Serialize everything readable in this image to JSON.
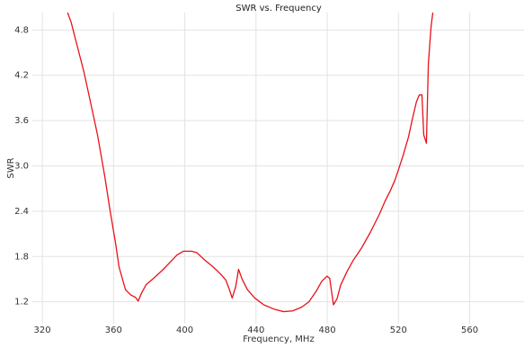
{
  "chart_data": {
    "type": "line",
    "title": "SWR vs. Frequency",
    "x_label": "Frequency, MHz",
    "y_label": "SWR",
    "x": [
      334.2,
      336.2,
      339.8,
      343.4,
      346.9,
      351.0,
      355.0,
      358.1,
      361.1,
      363.1,
      366.7,
      369.7,
      372.3,
      373.8,
      375.8,
      378.4,
      382.4,
      387.5,
      391.6,
      395.6,
      399.2,
      403.8,
      406.8,
      410.9,
      416.0,
      420.0,
      423.0,
      425.1,
      426.6,
      428.6,
      430.2,
      432.2,
      435.2,
      439.3,
      444.4,
      450.5,
      455.5,
      460.6,
      465.7,
      469.7,
      473.8,
      476.9,
      479.9,
      481.4,
      483.5,
      485.5,
      487.5,
      491.1,
      494.6,
      499.2,
      504.2,
      509.3,
      512.4,
      515.4,
      518.0,
      520.0,
      522.5,
      525.6,
      528.1,
      530.1,
      531.7,
      533.2,
      534.2,
      535.7,
      536.8,
      538.3,
      539.3
    ],
    "series": [
      {
        "name": "SWR",
        "color": "#e8121a",
        "values": [
          5.03,
          4.9,
          4.57,
          4.24,
          3.86,
          3.41,
          2.87,
          2.4,
          1.98,
          1.66,
          1.36,
          1.29,
          1.26,
          1.21,
          1.32,
          1.43,
          1.51,
          1.62,
          1.72,
          1.82,
          1.87,
          1.87,
          1.85,
          1.76,
          1.66,
          1.57,
          1.49,
          1.36,
          1.25,
          1.4,
          1.63,
          1.5,
          1.36,
          1.25,
          1.16,
          1.1,
          1.07,
          1.08,
          1.13,
          1.2,
          1.34,
          1.47,
          1.54,
          1.51,
          1.16,
          1.24,
          1.42,
          1.6,
          1.75,
          1.91,
          2.12,
          2.36,
          2.53,
          2.67,
          2.81,
          2.95,
          3.13,
          3.38,
          3.65,
          3.85,
          3.94,
          3.94,
          3.41,
          3.3,
          4.36,
          4.84,
          5.03
        ]
      }
    ],
    "xlim": [
      314.4,
      590.5
    ],
    "ylim": [
      0.91,
      5.03
    ],
    "xticks": [
      320,
      360,
      400,
      440,
      480,
      520,
      560
    ],
    "yticks": [
      1.2,
      1.8,
      2.4,
      {
        "value": 3,
        "label": "3.0"
      },
      3.6,
      4.2,
      4.8
    ],
    "grid": true
  }
}
